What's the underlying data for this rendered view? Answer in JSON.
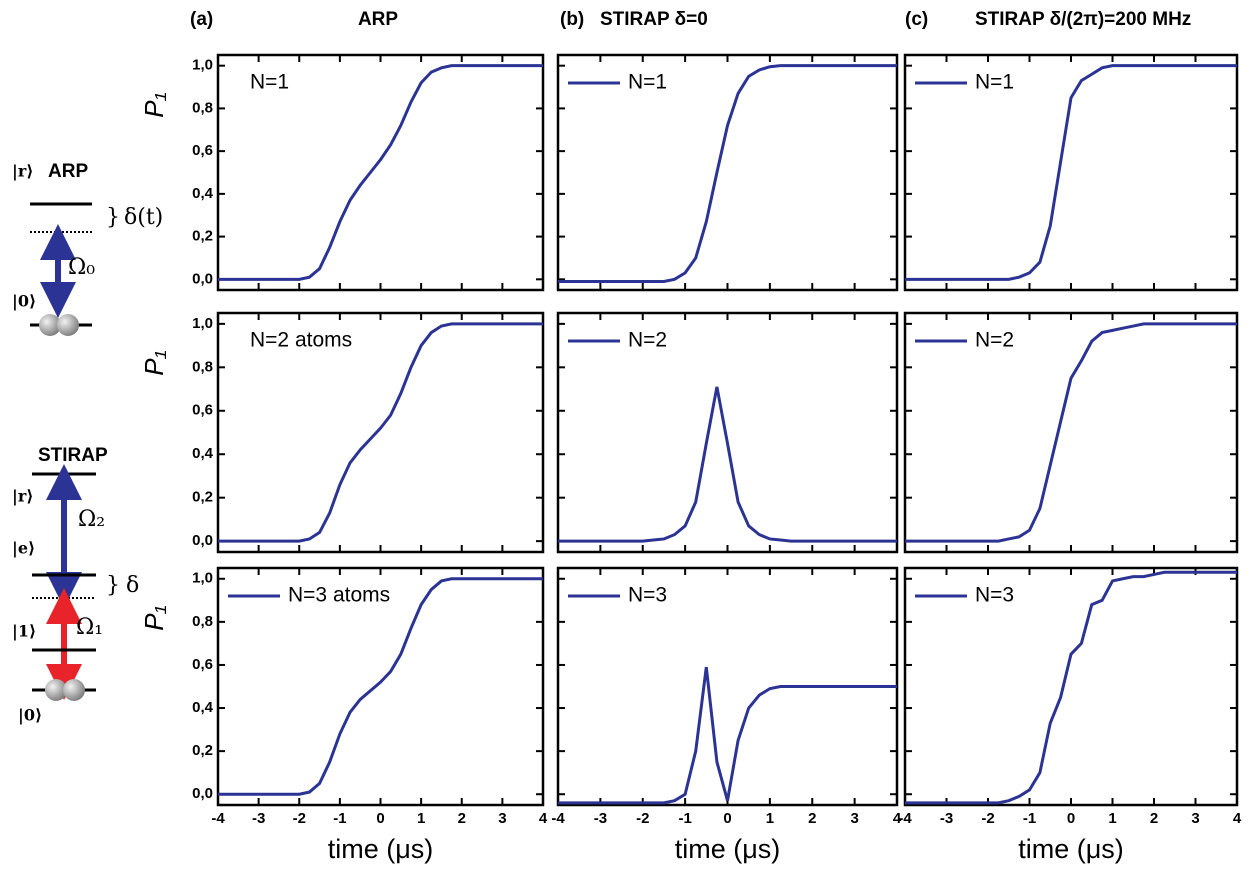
{
  "columns": [
    {
      "label": "(a)",
      "title": "ARP"
    },
    {
      "label": "(b)",
      "title": "STIRAP δ=0"
    },
    {
      "label": "(c)",
      "title": "STIRAP δ/(2π)=200 MHz"
    }
  ],
  "diagram": {
    "arp": {
      "title": "ARP",
      "upper": "|r⟩",
      "detuning": "δ(t)",
      "rabi": "Ω₀",
      "ground": "|0⟩"
    },
    "stirap": {
      "title": "STIRAP",
      "upper": "|r⟩",
      "rabi_upper": "Ω₂",
      "middle": "|e⟩",
      "detuning": "δ",
      "lower": "|1⟩",
      "rabi_lower": "Ω₁",
      "ground": "|0⟩"
    }
  },
  "chart_data": [
    {
      "type": "line",
      "annotation": "N=1",
      "ylabel": "P₁",
      "x": [
        -4,
        -3.75,
        -3.5,
        -3.25,
        -3,
        -2.75,
        -2.5,
        -2.25,
        -2,
        -1.75,
        -1.5,
        -1.25,
        -1,
        -0.75,
        -0.5,
        -0.25,
        0,
        0.25,
        0.5,
        0.75,
        1,
        1.25,
        1.5,
        1.75,
        2,
        2.25,
        2.5,
        2.75,
        3,
        3.25,
        3.5,
        3.75,
        4
      ],
      "series": [
        {
          "color": "#2b3494",
          "values": [
            0,
            0,
            0,
            0,
            0,
            0,
            0,
            0,
            0,
            0.01,
            0.05,
            0.15,
            0.27,
            0.37,
            0.44,
            0.5,
            0.56,
            0.63,
            0.72,
            0.83,
            0.92,
            0.97,
            0.99,
            1,
            1,
            1,
            1,
            1,
            1,
            1,
            1,
            1,
            1
          ]
        }
      ],
      "xlim": [
        -4,
        4
      ],
      "ylim": [
        -0.05,
        1.05
      ],
      "xticks": [
        -4,
        -3,
        -2,
        -1,
        0,
        1,
        2,
        3,
        4
      ],
      "yticks": [
        {
          "value": 0,
          "label": "0,0"
        },
        {
          "value": 0.2,
          "label": "0,2"
        },
        {
          "value": 0.4,
          "label": "0,4"
        },
        {
          "value": 0.6,
          "label": "0,6"
        },
        {
          "value": 0.8,
          "label": "0,8"
        },
        {
          "value": 1,
          "label": "1,0"
        }
      ]
    },
    {
      "type": "line",
      "x": [
        -4,
        -3.75,
        -3.5,
        -3.25,
        -3,
        -2.75,
        -2.5,
        -2.25,
        -2,
        -1.75,
        -1.5,
        -1.25,
        -1,
        -0.75,
        -0.5,
        -0.25,
        0,
        0.25,
        0.5,
        0.75,
        1,
        1.25,
        1.5,
        1.75,
        2,
        2.25,
        2.5,
        2.75,
        3,
        3.25,
        3.5,
        3.75,
        4
      ],
      "series": [
        {
          "name": "N=1",
          "color": "#2b3494",
          "values": [
            -0.01,
            -0.01,
            -0.01,
            -0.01,
            -0.01,
            -0.01,
            -0.01,
            -0.01,
            -0.01,
            -0.01,
            -0.01,
            0,
            0.03,
            0.1,
            0.27,
            0.5,
            0.72,
            0.87,
            0.95,
            0.98,
            0.995,
            1,
            1,
            1,
            1,
            1,
            1,
            1,
            1,
            1,
            1,
            1,
            1
          ]
        }
      ],
      "xlim": [
        -4,
        4
      ],
      "ylim": [
        -0.05,
        1.05
      ],
      "xticks": [
        -4,
        -3,
        -2,
        -1,
        0,
        1,
        2,
        3,
        4
      ],
      "yticks": [
        0,
        0.2,
        0.4,
        0.6,
        0.8,
        1
      ]
    },
    {
      "type": "line",
      "x": [
        -4,
        -3.75,
        -3.5,
        -3.25,
        -3,
        -2.75,
        -2.5,
        -2.25,
        -2,
        -1.75,
        -1.5,
        -1.25,
        -1,
        -0.75,
        -0.5,
        -0.25,
        0,
        0.25,
        0.5,
        0.75,
        1,
        1.25,
        1.5,
        1.75,
        2,
        2.25,
        2.5,
        2.75,
        3,
        3.25,
        3.5,
        3.75,
        4
      ],
      "series": [
        {
          "name": "N=1",
          "color": "#2b3494",
          "values": [
            0,
            0,
            0,
            0,
            0,
            0,
            0,
            0,
            0,
            0,
            0,
            0.01,
            0.03,
            0.08,
            0.25,
            0.55,
            0.85,
            0.93,
            0.96,
            0.99,
            1,
            1,
            1,
            1,
            1,
            1,
            1,
            1,
            1,
            1,
            1,
            1,
            1
          ]
        }
      ],
      "xlim": [
        -4,
        4
      ],
      "ylim": [
        -0.05,
        1.05
      ],
      "xticks": [
        -4,
        -3,
        -2,
        -1,
        0,
        1,
        2,
        3,
        4
      ],
      "yticks": [
        0,
        0.2,
        0.4,
        0.6,
        0.8,
        1
      ]
    },
    {
      "type": "line",
      "annotation": "N=2 atoms",
      "ylabel": "P₁",
      "x": [
        -4,
        -3.75,
        -3.5,
        -3.25,
        -3,
        -2.75,
        -2.5,
        -2.25,
        -2,
        -1.75,
        -1.5,
        -1.25,
        -1,
        -0.75,
        -0.5,
        -0.25,
        0,
        0.25,
        0.5,
        0.75,
        1,
        1.25,
        1.5,
        1.75,
        2,
        2.25,
        2.5,
        2.75,
        3,
        3.25,
        3.5,
        3.75,
        4
      ],
      "series": [
        {
          "color": "#2b3494",
          "values": [
            0,
            0,
            0,
            0,
            0,
            0,
            0,
            0,
            0,
            0.01,
            0.04,
            0.13,
            0.26,
            0.36,
            0.42,
            0.47,
            0.52,
            0.58,
            0.68,
            0.8,
            0.9,
            0.96,
            0.99,
            1,
            1,
            1,
            1,
            1,
            1,
            1,
            1,
            1,
            1
          ]
        }
      ],
      "xlim": [
        -4,
        4
      ],
      "ylim": [
        -0.05,
        1.05
      ],
      "xticks": [
        -4,
        -3,
        -2,
        -1,
        0,
        1,
        2,
        3,
        4
      ],
      "yticks": [
        {
          "value": 0,
          "label": "0,0"
        },
        {
          "value": 0.2,
          "label": "0,2"
        },
        {
          "value": 0.4,
          "label": "0,4"
        },
        {
          "value": 0.6,
          "label": "0,6"
        },
        {
          "value": 0.8,
          "label": "0,8"
        },
        {
          "value": 1,
          "label": "1,0"
        }
      ]
    },
    {
      "type": "line",
      "x": [
        -4,
        -3.75,
        -3.5,
        -3.25,
        -3,
        -2.75,
        -2.5,
        -2.25,
        -2,
        -1.75,
        -1.5,
        -1.25,
        -1,
        -0.75,
        -0.5,
        -0.25,
        0,
        0.25,
        0.5,
        0.75,
        1,
        1.25,
        1.5,
        1.75,
        2,
        2.25,
        2.5,
        2.75,
        3,
        3.25,
        3.5,
        3.75,
        4
      ],
      "series": [
        {
          "name": "N=2",
          "color": "#2b3494",
          "values": [
            0,
            0,
            0,
            0,
            0,
            0,
            0,
            0,
            0,
            0.005,
            0.01,
            0.03,
            0.07,
            0.18,
            0.45,
            0.71,
            0.45,
            0.18,
            0.07,
            0.03,
            0.01,
            0.005,
            0,
            0,
            0,
            0,
            0,
            0,
            0,
            0,
            0,
            0,
            0
          ]
        }
      ],
      "xlim": [
        -4,
        4
      ],
      "ylim": [
        -0.05,
        1.05
      ],
      "xticks": [
        -4,
        -3,
        -2,
        -1,
        0,
        1,
        2,
        3,
        4
      ],
      "yticks": [
        0,
        0.2,
        0.4,
        0.6,
        0.8,
        1
      ]
    },
    {
      "type": "line",
      "x": [
        -4,
        -3.75,
        -3.5,
        -3.25,
        -3,
        -2.75,
        -2.5,
        -2.25,
        -2,
        -1.75,
        -1.5,
        -1.25,
        -1,
        -0.75,
        -0.5,
        -0.25,
        0,
        0.25,
        0.5,
        0.75,
        1,
        1.25,
        1.5,
        1.75,
        2,
        2.25,
        2.5,
        2.75,
        3,
        3.25,
        3.5,
        3.75,
        4
      ],
      "series": [
        {
          "name": "N=2",
          "color": "#2b3494",
          "values": [
            0,
            0,
            0,
            0,
            0,
            0,
            0,
            0,
            0,
            0,
            0.01,
            0.02,
            0.05,
            0.15,
            0.35,
            0.55,
            0.75,
            0.83,
            0.92,
            0.96,
            0.97,
            0.98,
            0.99,
            1,
            1,
            1,
            1,
            1,
            1,
            1,
            1,
            1,
            1
          ]
        }
      ],
      "xlim": [
        -4,
        4
      ],
      "ylim": [
        -0.05,
        1.05
      ],
      "xticks": [
        -4,
        -3,
        -2,
        -1,
        0,
        1,
        2,
        3,
        4
      ],
      "yticks": [
        0,
        0.2,
        0.4,
        0.6,
        0.8,
        1
      ]
    },
    {
      "type": "line",
      "ylabel": "P₁",
      "xlabel": "time (μs)",
      "x": [
        -4,
        -3.75,
        -3.5,
        -3.25,
        -3,
        -2.75,
        -2.5,
        -2.25,
        -2,
        -1.75,
        -1.5,
        -1.25,
        -1,
        -0.75,
        -0.5,
        -0.25,
        0,
        0.25,
        0.5,
        0.75,
        1,
        1.25,
        1.5,
        1.75,
        2,
        2.25,
        2.5,
        2.75,
        3,
        3.25,
        3.5,
        3.75,
        4
      ],
      "series": [
        {
          "name": "N=3 atoms",
          "color": "#2b3494",
          "values": [
            0,
            0,
            0,
            0,
            0,
            0,
            0,
            0,
            0,
            0.01,
            0.05,
            0.15,
            0.28,
            0.38,
            0.44,
            0.48,
            0.52,
            0.57,
            0.65,
            0.77,
            0.88,
            0.95,
            0.99,
            1,
            1,
            1,
            1,
            1,
            1,
            1,
            1,
            1,
            1
          ]
        }
      ],
      "xlim": [
        -4,
        4
      ],
      "ylim": [
        -0.05,
        1.05
      ],
      "xticks": [
        -4,
        -3,
        -2,
        -1,
        0,
        1,
        2,
        3,
        4
      ],
      "yticks": [
        {
          "value": 0,
          "label": "0,0"
        },
        {
          "value": 0.2,
          "label": "0,2"
        },
        {
          "value": 0.4,
          "label": "0,4"
        },
        {
          "value": 0.6,
          "label": "0,6"
        },
        {
          "value": 0.8,
          "label": "0,8"
        },
        {
          "value": 1,
          "label": "1,0"
        }
      ]
    },
    {
      "type": "line",
      "xlabel": "time (μs)",
      "x": [
        -4,
        -3.75,
        -3.5,
        -3.25,
        -3,
        -2.75,
        -2.5,
        -2.25,
        -2,
        -1.75,
        -1.5,
        -1.25,
        -1,
        -0.75,
        -0.5,
        -0.25,
        0,
        0.25,
        0.5,
        0.75,
        1,
        1.25,
        1.5,
        1.75,
        2,
        2.25,
        2.5,
        2.75,
        3,
        3.25,
        3.5,
        3.75,
        4
      ],
      "series": [
        {
          "name": "N=3",
          "color": "#2b3494",
          "values": [
            -0.04,
            -0.04,
            -0.04,
            -0.04,
            -0.04,
            -0.04,
            -0.04,
            -0.04,
            -0.04,
            -0.04,
            -0.04,
            -0.03,
            0,
            0.2,
            0.59,
            0.15,
            -0.03,
            0.25,
            0.4,
            0.46,
            0.49,
            0.5,
            0.5,
            0.5,
            0.5,
            0.5,
            0.5,
            0.5,
            0.5,
            0.5,
            0.5,
            0.5,
            0.5
          ]
        }
      ],
      "xlim": [
        -4,
        4
      ],
      "ylim": [
        -0.05,
        1.05
      ],
      "xticks": [
        -4,
        -3,
        -2,
        -1,
        0,
        1,
        2,
        3,
        4
      ],
      "yticks": [
        0,
        0.2,
        0.4,
        0.6,
        0.8,
        1
      ]
    },
    {
      "type": "line",
      "xlabel": "time (μs)",
      "x": [
        -4,
        -3.75,
        -3.5,
        -3.25,
        -3,
        -2.75,
        -2.5,
        -2.25,
        -2,
        -1.75,
        -1.5,
        -1.25,
        -1,
        -0.75,
        -0.5,
        -0.25,
        0,
        0.25,
        0.5,
        0.75,
        1,
        1.25,
        1.5,
        1.75,
        2,
        2.25,
        2.5,
        2.75,
        3,
        3.25,
        3.5,
        3.75,
        4
      ],
      "series": [
        {
          "name": "N=3",
          "color": "#2b3494",
          "values": [
            -0.04,
            -0.04,
            -0.04,
            -0.04,
            -0.04,
            -0.04,
            -0.04,
            -0.04,
            -0.04,
            -0.04,
            -0.03,
            -0.01,
            0.02,
            0.1,
            0.33,
            0.45,
            0.65,
            0.7,
            0.88,
            0.9,
            0.99,
            1,
            1.01,
            1.01,
            1.02,
            1.03,
            1.03,
            1.03,
            1.03,
            1.03,
            1.03,
            1.03,
            1.03
          ]
        }
      ],
      "xlim": [
        -4,
        4
      ],
      "ylim": [
        -0.05,
        1.05
      ],
      "xticks": [
        -4,
        -3,
        -2,
        -1,
        0,
        1,
        2,
        3,
        4
      ],
      "yticks": [
        0,
        0.2,
        0.4,
        0.6,
        0.8,
        1
      ]
    }
  ]
}
